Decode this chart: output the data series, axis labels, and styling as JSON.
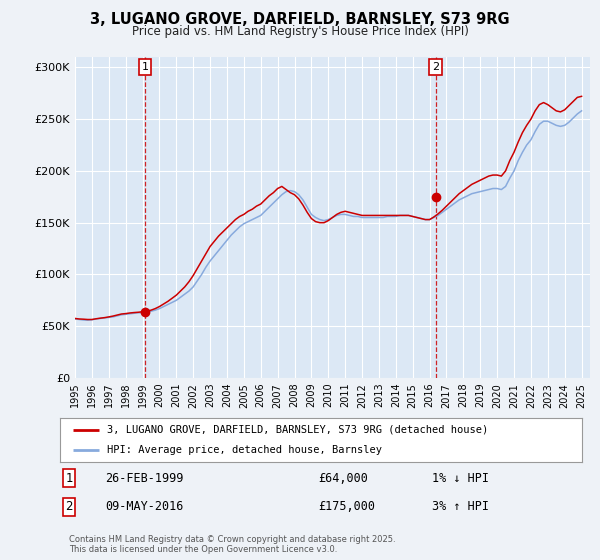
{
  "title": "3, LUGANO GROVE, DARFIELD, BARNSLEY, S73 9RG",
  "subtitle": "Price paid vs. HM Land Registry's House Price Index (HPI)",
  "background_color": "#eef2f7",
  "plot_bg_color": "#dce8f5",
  "grid_color": "#ffffff",
  "ylim": [
    0,
    310000
  ],
  "yticks": [
    0,
    50000,
    100000,
    150000,
    200000,
    250000,
    300000
  ],
  "ytick_labels": [
    "£0",
    "£50K",
    "£100K",
    "£150K",
    "£200K",
    "£250K",
    "£300K"
  ],
  "sale1_x": 1999.15,
  "sale1_y": 64000,
  "sale1_label": "1",
  "sale2_x": 2016.36,
  "sale2_y": 175000,
  "sale2_label": "2",
  "property_color": "#cc0000",
  "hpi_color": "#88aadd",
  "legend_label_property": "3, LUGANO GROVE, DARFIELD, BARNSLEY, S73 9RG (detached house)",
  "legend_label_hpi": "HPI: Average price, detached house, Barnsley",
  "annotation1": [
    "1",
    "26-FEB-1999",
    "£64,000",
    "1% ↓ HPI"
  ],
  "annotation2": [
    "2",
    "09-MAY-2016",
    "£175,000",
    "3% ↑ HPI"
  ],
  "footer": "Contains HM Land Registry data © Crown copyright and database right 2025.\nThis data is licensed under the Open Government Licence v3.0.",
  "xmin": 1995,
  "xmax": 2025.5,
  "hpi_data": [
    [
      1995.0,
      57000
    ],
    [
      1995.25,
      56500
    ],
    [
      1995.5,
      56000
    ],
    [
      1995.75,
      55800
    ],
    [
      1996.0,
      56200
    ],
    [
      1996.25,
      57000
    ],
    [
      1996.5,
      57500
    ],
    [
      1996.75,
      58000
    ],
    [
      1997.0,
      58500
    ],
    [
      1997.25,
      59000
    ],
    [
      1997.5,
      60000
    ],
    [
      1997.75,
      61000
    ],
    [
      1998.0,
      61500
    ],
    [
      1998.25,
      62000
    ],
    [
      1998.5,
      62500
    ],
    [
      1998.75,
      63000
    ],
    [
      1999.0,
      63000
    ],
    [
      1999.25,
      63500
    ],
    [
      1999.5,
      64500
    ],
    [
      1999.75,
      65500
    ],
    [
      2000.0,
      67000
    ],
    [
      2000.25,
      69000
    ],
    [
      2000.5,
      71000
    ],
    [
      2000.75,
      73000
    ],
    [
      2001.0,
      75000
    ],
    [
      2001.25,
      78000
    ],
    [
      2001.5,
      81000
    ],
    [
      2001.75,
      84000
    ],
    [
      2002.0,
      88000
    ],
    [
      2002.25,
      94000
    ],
    [
      2002.5,
      100000
    ],
    [
      2002.75,
      107000
    ],
    [
      2003.0,
      113000
    ],
    [
      2003.25,
      118000
    ],
    [
      2003.5,
      123000
    ],
    [
      2003.75,
      128000
    ],
    [
      2004.0,
      133000
    ],
    [
      2004.25,
      138000
    ],
    [
      2004.5,
      142000
    ],
    [
      2004.75,
      146000
    ],
    [
      2005.0,
      149000
    ],
    [
      2005.25,
      151000
    ],
    [
      2005.5,
      153000
    ],
    [
      2005.75,
      155000
    ],
    [
      2006.0,
      157000
    ],
    [
      2006.25,
      161000
    ],
    [
      2006.5,
      165000
    ],
    [
      2006.75,
      169000
    ],
    [
      2007.0,
      173000
    ],
    [
      2007.25,
      177000
    ],
    [
      2007.5,
      180000
    ],
    [
      2007.75,
      181000
    ],
    [
      2008.0,
      180000
    ],
    [
      2008.25,
      177000
    ],
    [
      2008.5,
      172000
    ],
    [
      2008.75,
      165000
    ],
    [
      2009.0,
      158000
    ],
    [
      2009.25,
      155000
    ],
    [
      2009.5,
      153000
    ],
    [
      2009.75,
      152000
    ],
    [
      2010.0,
      153000
    ],
    [
      2010.25,
      155000
    ],
    [
      2010.5,
      157000
    ],
    [
      2010.75,
      158000
    ],
    [
      2011.0,
      158000
    ],
    [
      2011.25,
      157000
    ],
    [
      2011.5,
      156000
    ],
    [
      2011.75,
      156000
    ],
    [
      2012.0,
      155000
    ],
    [
      2012.25,
      155000
    ],
    [
      2012.5,
      155000
    ],
    [
      2012.75,
      155000
    ],
    [
      2013.0,
      155000
    ],
    [
      2013.25,
      155000
    ],
    [
      2013.5,
      156000
    ],
    [
      2013.75,
      156000
    ],
    [
      2014.0,
      156000
    ],
    [
      2014.25,
      157000
    ],
    [
      2014.5,
      157000
    ],
    [
      2014.75,
      157000
    ],
    [
      2015.0,
      156000
    ],
    [
      2015.25,
      155000
    ],
    [
      2015.5,
      154000
    ],
    [
      2015.75,
      153000
    ],
    [
      2016.0,
      153000
    ],
    [
      2016.25,
      155000
    ],
    [
      2016.5,
      157000
    ],
    [
      2016.75,
      160000
    ],
    [
      2017.0,
      163000
    ],
    [
      2017.25,
      166000
    ],
    [
      2017.5,
      169000
    ],
    [
      2017.75,
      172000
    ],
    [
      2018.0,
      174000
    ],
    [
      2018.25,
      176000
    ],
    [
      2018.5,
      178000
    ],
    [
      2018.75,
      179000
    ],
    [
      2019.0,
      180000
    ],
    [
      2019.25,
      181000
    ],
    [
      2019.5,
      182000
    ],
    [
      2019.75,
      183000
    ],
    [
      2020.0,
      183000
    ],
    [
      2020.25,
      182000
    ],
    [
      2020.5,
      185000
    ],
    [
      2020.75,
      193000
    ],
    [
      2021.0,
      200000
    ],
    [
      2021.25,
      210000
    ],
    [
      2021.5,
      218000
    ],
    [
      2021.75,
      225000
    ],
    [
      2022.0,
      230000
    ],
    [
      2022.25,
      238000
    ],
    [
      2022.5,
      245000
    ],
    [
      2022.75,
      248000
    ],
    [
      2023.0,
      248000
    ],
    [
      2023.25,
      246000
    ],
    [
      2023.5,
      244000
    ],
    [
      2023.75,
      243000
    ],
    [
      2024.0,
      244000
    ],
    [
      2024.25,
      247000
    ],
    [
      2024.5,
      251000
    ],
    [
      2024.75,
      255000
    ],
    [
      2025.0,
      258000
    ]
  ],
  "property_data": [
    [
      1995.0,
      57500
    ],
    [
      1995.25,
      57000
    ],
    [
      1995.5,
      56800
    ],
    [
      1995.75,
      56500
    ],
    [
      1996.0,
      56500
    ],
    [
      1996.25,
      57200
    ],
    [
      1996.5,
      57800
    ],
    [
      1996.75,
      58300
    ],
    [
      1997.0,
      59000
    ],
    [
      1997.25,
      59800
    ],
    [
      1997.5,
      60800
    ],
    [
      1997.75,
      61800
    ],
    [
      1998.0,
      62200
    ],
    [
      1998.25,
      62800
    ],
    [
      1998.5,
      63200
    ],
    [
      1998.75,
      63500
    ],
    [
      1999.0,
      64000
    ],
    [
      1999.25,
      64500
    ],
    [
      1999.5,
      65500
    ],
    [
      1999.75,
      67000
    ],
    [
      2000.0,
      69000
    ],
    [
      2000.25,
      71500
    ],
    [
      2000.5,
      74000
    ],
    [
      2000.75,
      77000
    ],
    [
      2001.0,
      80000
    ],
    [
      2001.25,
      84000
    ],
    [
      2001.5,
      88000
    ],
    [
      2001.75,
      93000
    ],
    [
      2002.0,
      99000
    ],
    [
      2002.25,
      106000
    ],
    [
      2002.5,
      113000
    ],
    [
      2002.75,
      120000
    ],
    [
      2003.0,
      127000
    ],
    [
      2003.25,
      132000
    ],
    [
      2003.5,
      137000
    ],
    [
      2003.75,
      141000
    ],
    [
      2004.0,
      145000
    ],
    [
      2004.25,
      149000
    ],
    [
      2004.5,
      153000
    ],
    [
      2004.75,
      156000
    ],
    [
      2005.0,
      158000
    ],
    [
      2005.25,
      161000
    ],
    [
      2005.5,
      163000
    ],
    [
      2005.75,
      166000
    ],
    [
      2006.0,
      168000
    ],
    [
      2006.25,
      172000
    ],
    [
      2006.5,
      176000
    ],
    [
      2006.75,
      179000
    ],
    [
      2007.0,
      183000
    ],
    [
      2007.25,
      185000
    ],
    [
      2007.5,
      182000
    ],
    [
      2007.75,
      179000
    ],
    [
      2008.0,
      177000
    ],
    [
      2008.25,
      173000
    ],
    [
      2008.5,
      167000
    ],
    [
      2008.75,
      160000
    ],
    [
      2009.0,
      154000
    ],
    [
      2009.25,
      151000
    ],
    [
      2009.5,
      150000
    ],
    [
      2009.75,
      150000
    ],
    [
      2010.0,
      152000
    ],
    [
      2010.25,
      155000
    ],
    [
      2010.5,
      158000
    ],
    [
      2010.75,
      160000
    ],
    [
      2011.0,
      161000
    ],
    [
      2011.25,
      160000
    ],
    [
      2011.5,
      159000
    ],
    [
      2011.75,
      158000
    ],
    [
      2012.0,
      157000
    ],
    [
      2012.25,
      157000
    ],
    [
      2012.5,
      157000
    ],
    [
      2012.75,
      157000
    ],
    [
      2013.0,
      157000
    ],
    [
      2013.25,
      157000
    ],
    [
      2013.5,
      157000
    ],
    [
      2013.75,
      157000
    ],
    [
      2014.0,
      157000
    ],
    [
      2014.25,
      157000
    ],
    [
      2014.5,
      157000
    ],
    [
      2014.75,
      157000
    ],
    [
      2015.0,
      156000
    ],
    [
      2015.25,
      155000
    ],
    [
      2015.5,
      154000
    ],
    [
      2015.75,
      153000
    ],
    [
      2016.0,
      153000
    ],
    [
      2016.25,
      155500
    ],
    [
      2016.5,
      158500
    ],
    [
      2016.75,
      162000
    ],
    [
      2017.0,
      166000
    ],
    [
      2017.25,
      170000
    ],
    [
      2017.5,
      174000
    ],
    [
      2017.75,
      178000
    ],
    [
      2018.0,
      181000
    ],
    [
      2018.25,
      184000
    ],
    [
      2018.5,
      187000
    ],
    [
      2018.75,
      189000
    ],
    [
      2019.0,
      191000
    ],
    [
      2019.25,
      193000
    ],
    [
      2019.5,
      195000
    ],
    [
      2019.75,
      196000
    ],
    [
      2020.0,
      196000
    ],
    [
      2020.25,
      195000
    ],
    [
      2020.5,
      200000
    ],
    [
      2020.75,
      210000
    ],
    [
      2021.0,
      218000
    ],
    [
      2021.25,
      228000
    ],
    [
      2021.5,
      237000
    ],
    [
      2021.75,
      244000
    ],
    [
      2022.0,
      250000
    ],
    [
      2022.25,
      258000
    ],
    [
      2022.5,
      264000
    ],
    [
      2022.75,
      266000
    ],
    [
      2023.0,
      264000
    ],
    [
      2023.25,
      261000
    ],
    [
      2023.5,
      258000
    ],
    [
      2023.75,
      257000
    ],
    [
      2024.0,
      259000
    ],
    [
      2024.25,
      263000
    ],
    [
      2024.5,
      267000
    ],
    [
      2024.75,
      271000
    ],
    [
      2025.0,
      272000
    ]
  ]
}
